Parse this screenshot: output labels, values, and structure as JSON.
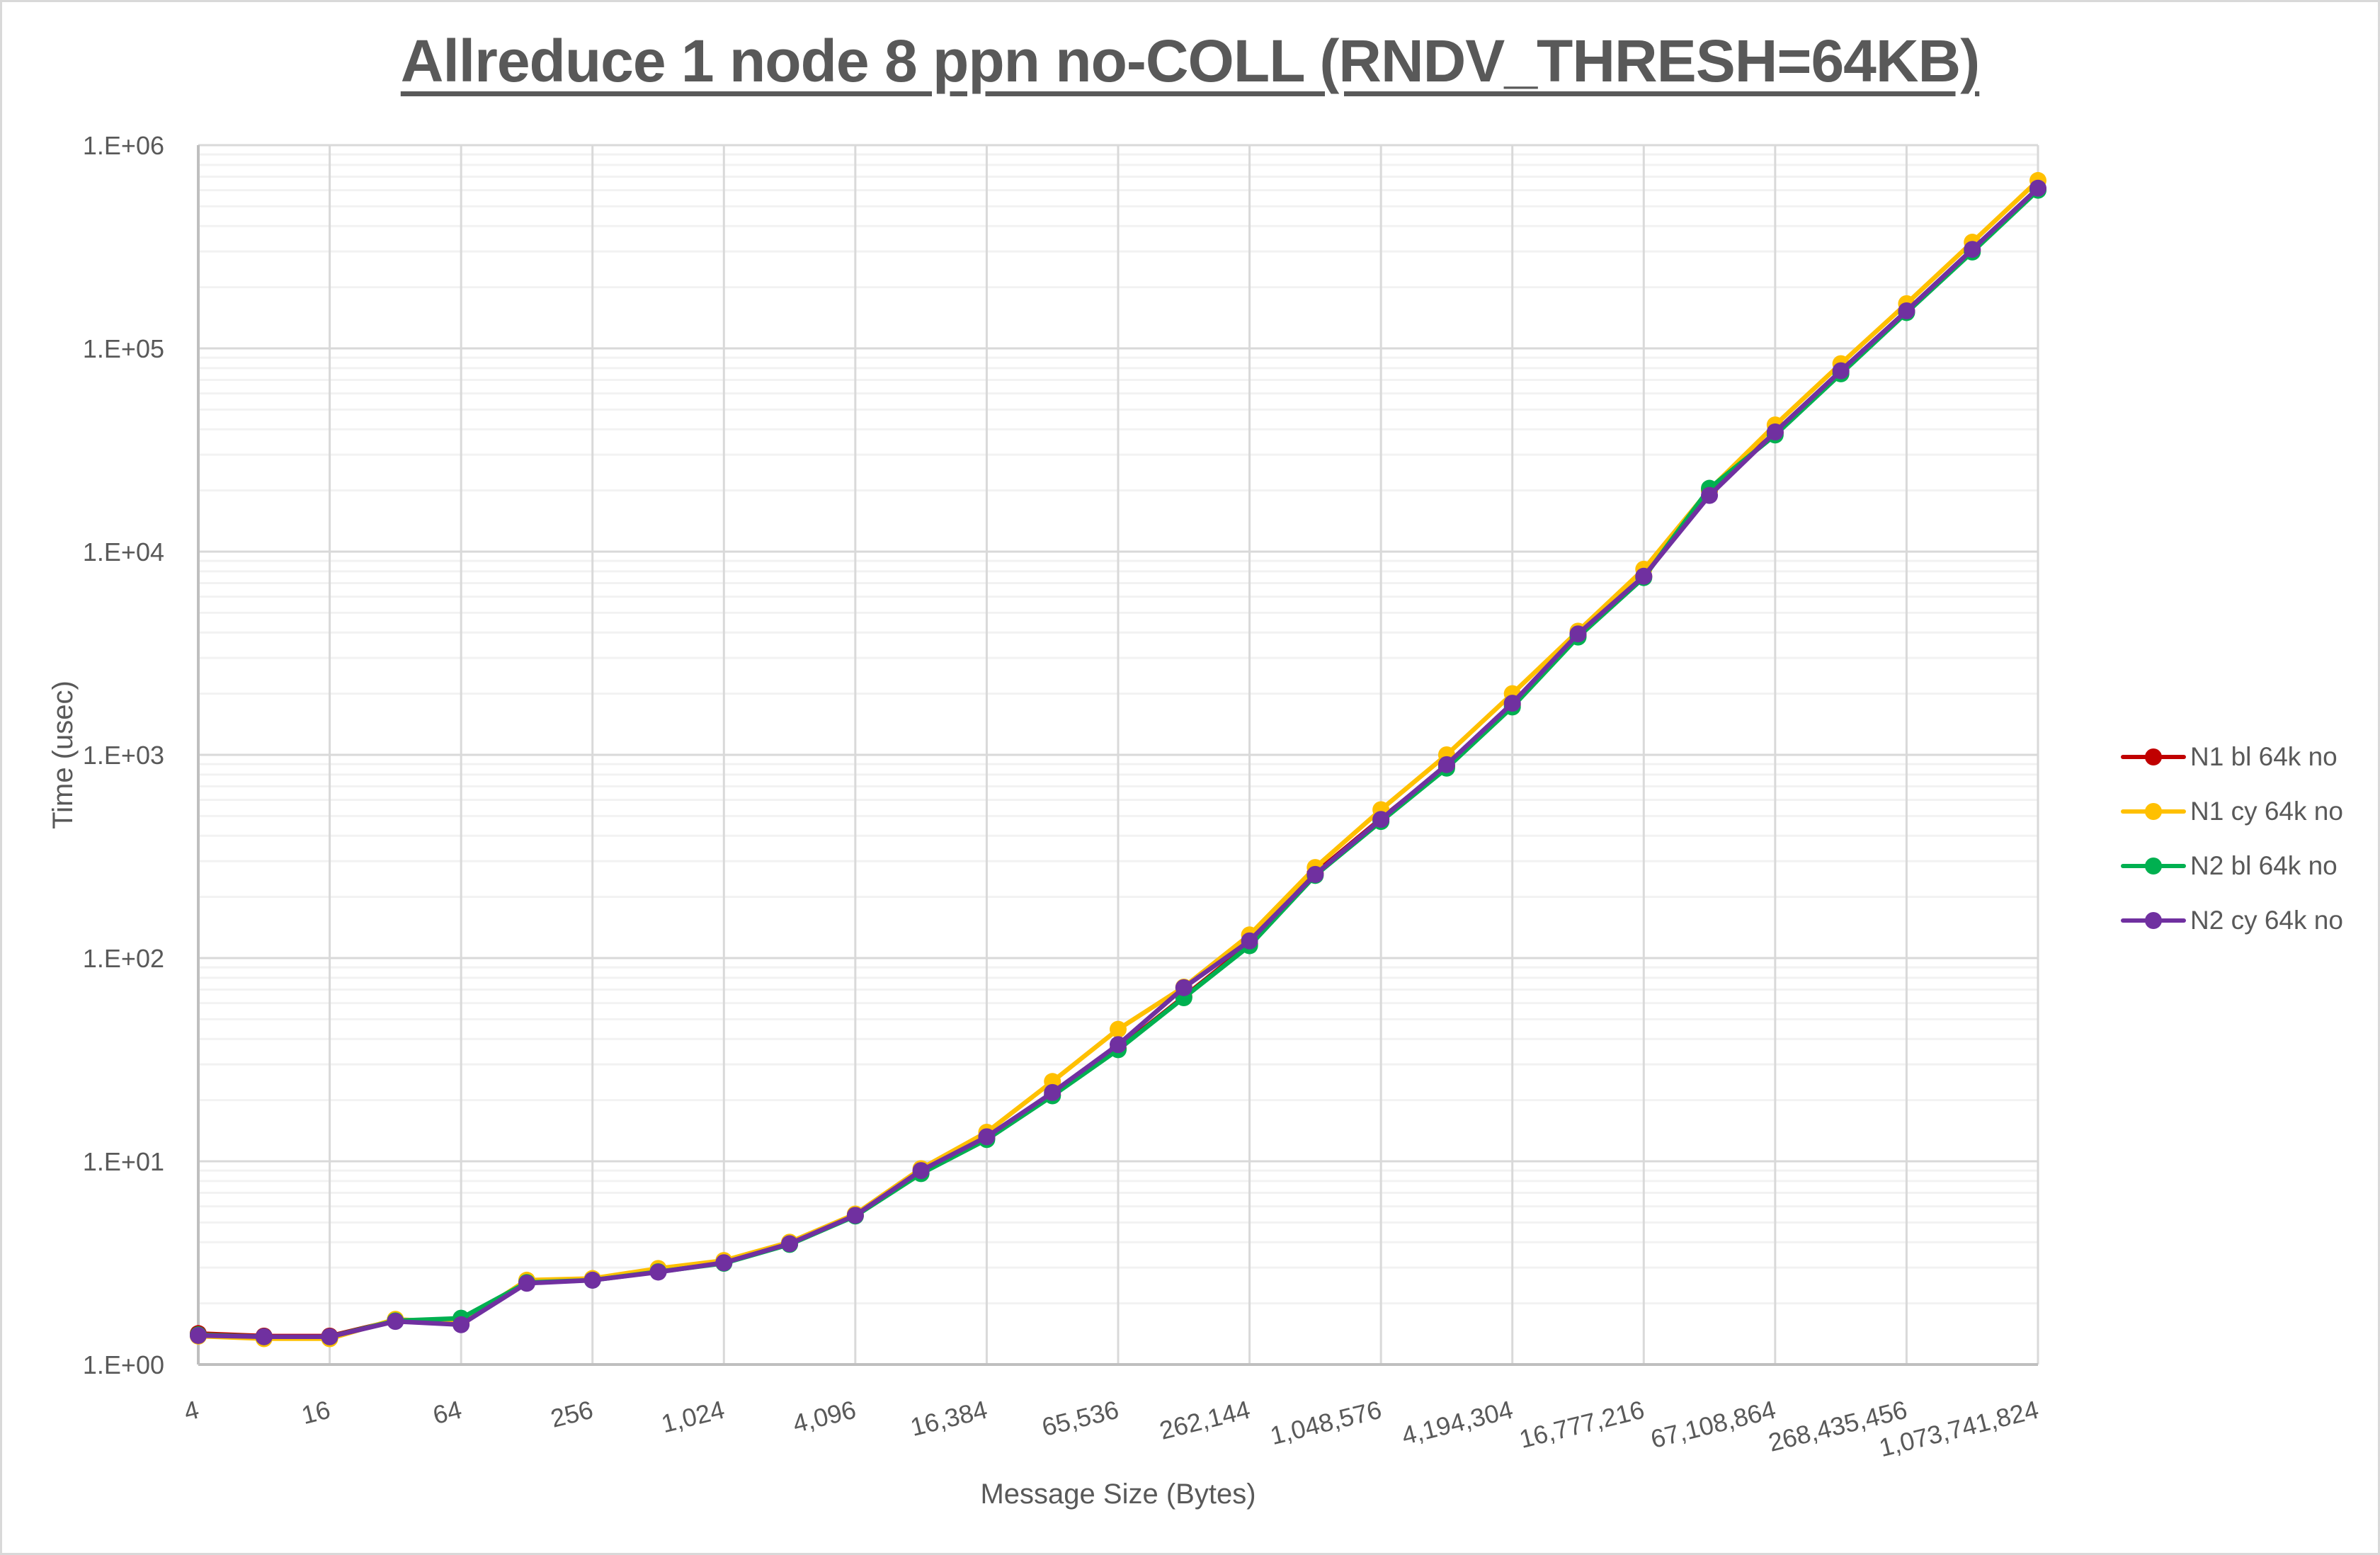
{
  "chart": {
    "title": "Allreduce 1 node 8 ppn no-COLL (RNDV_THRESH=64KB)",
    "xlabel": "Message Size (Bytes)",
    "ylabel": "Time (usec)",
    "y_tick_labels": [
      "1.E+00",
      "1.E+01",
      "1.E+02",
      "1.E+03",
      "1.E+04",
      "1.E+05",
      "1.E+06"
    ],
    "x_tick_labels": [
      "4",
      "16",
      "64",
      "256",
      "1,024",
      "4,096",
      "16,384",
      "65,536",
      "262,144",
      "1,048,576",
      "4,194,304",
      "16,777,216",
      "67,108,864",
      "268,435,456",
      "1,073,741,824"
    ]
  },
  "legend": {
    "items": [
      {
        "label": "N1 bl 64k no",
        "color": "#C00000"
      },
      {
        "label": "N1 cy 64k no",
        "color": "#FFC000"
      },
      {
        "label": "N2 bl 64k no",
        "color": "#00B050"
      },
      {
        "label": "N2 cy 64k no",
        "color": "#7030A0"
      }
    ]
  },
  "chart_data": {
    "type": "line",
    "title": "Allreduce 1 node 8 ppn no-COLL (RNDV_THRESH=64KB)",
    "xlabel": "Message Size (Bytes)",
    "ylabel": "Time (usec)",
    "x_scale": "log2",
    "y_scale": "log10",
    "ylim": [
      1,
      1000000
    ],
    "grid": true,
    "legend_position": "right",
    "x": [
      4,
      8,
      16,
      32,
      64,
      128,
      256,
      512,
      1024,
      2048,
      4096,
      8192,
      16384,
      32768,
      65536,
      131072,
      262144,
      524288,
      1048576,
      2097152,
      4194304,
      8388608,
      16777216,
      33554432,
      67108864,
      134217728,
      268435456,
      536870912,
      1073741824
    ],
    "series": [
      {
        "name": "N1 bl 64k no",
        "color": "#C00000",
        "values": [
          1.42,
          1.38,
          1.38,
          1.65,
          1.64,
          2.55,
          2.62,
          2.88,
          3.18,
          3.92,
          5.4,
          8.9,
          13.0,
          21.2,
          35.8,
          64.5,
          117,
          262,
          485,
          880,
          1760,
          3880,
          7550,
          20000,
          38500,
          76500,
          152000,
          303000,
          608000
        ]
      },
      {
        "name": "N1 cy 64k no",
        "color": "#FFC000",
        "values": [
          1.38,
          1.34,
          1.34,
          1.67,
          1.6,
          2.6,
          2.65,
          2.97,
          3.25,
          4.0,
          5.5,
          9.2,
          13.9,
          24.7,
          44.6,
          72.0,
          130,
          279,
          537,
          1000,
          2000,
          4060,
          8190,
          20200,
          42000,
          84100,
          166000,
          333000,
          670000
        ]
      },
      {
        "name": "N2 bl 64k no",
        "color": "#00B050",
        "values": [
          1.4,
          1.37,
          1.37,
          1.64,
          1.69,
          2.53,
          2.6,
          2.86,
          3.15,
          3.9,
          5.38,
          8.7,
          12.8,
          21.0,
          35.4,
          63.8,
          115,
          255,
          470,
          860,
          1720,
          3800,
          7450,
          20500,
          37500,
          75000,
          150000,
          298000,
          600000
        ]
      },
      {
        "name": "N2 cy 64k no",
        "color": "#7030A0",
        "values": [
          1.39,
          1.37,
          1.37,
          1.63,
          1.57,
          2.51,
          2.6,
          2.85,
          3.17,
          3.93,
          5.42,
          9.0,
          13.2,
          21.8,
          37.5,
          71.5,
          121.5,
          258,
          481,
          895,
          1795,
          3936,
          7565,
          18900,
          38800,
          77600,
          153000,
          307000,
          614000
        ]
      }
    ]
  }
}
